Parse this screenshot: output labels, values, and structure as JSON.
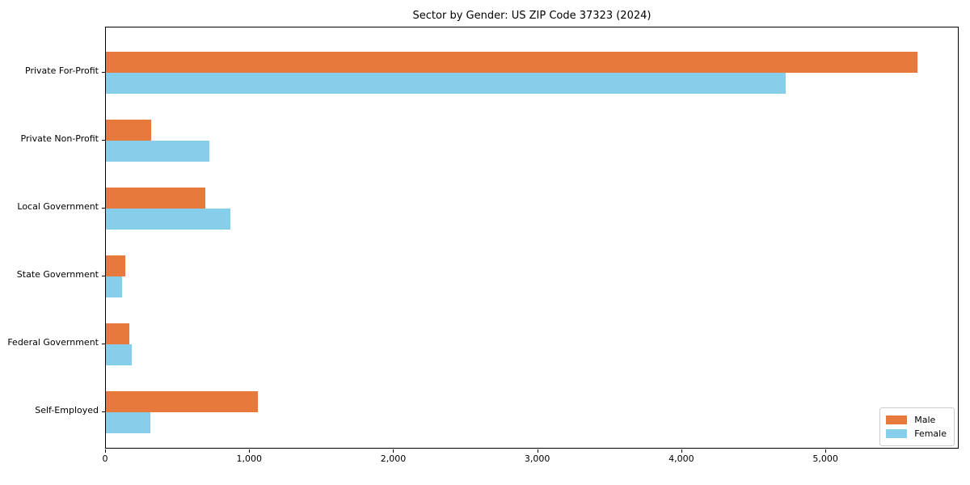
{
  "title": "Sector by Gender: US ZIP Code 37323 (2024)",
  "chart_data": {
    "type": "bar",
    "orientation": "horizontal",
    "title": "Sector by Gender: US ZIP Code 37323 (2024)",
    "xlabel": "",
    "ylabel": "",
    "categories": [
      "Private For-Profit",
      "Private Non-Profit",
      "Local Government",
      "State Government",
      "Federal Government",
      "Self-Employed"
    ],
    "series": [
      {
        "name": "Male",
        "color": "#E8793D",
        "values": [
          5645,
          315,
          690,
          135,
          165,
          1055
        ]
      },
      {
        "name": "Female",
        "color": "#87CEEB",
        "values": [
          4730,
          720,
          865,
          112,
          178,
          310
        ]
      }
    ],
    "xlim": [
      0,
      5925
    ],
    "xticks": [
      0,
      1000,
      2000,
      3000,
      4000,
      5000
    ],
    "xtick_labels": [
      "0",
      "1,000",
      "2,000",
      "3,000",
      "4,000",
      "5,000"
    ],
    "grid": false,
    "legend": {
      "position": "lower right",
      "entries": [
        "Male",
        "Female"
      ]
    }
  }
}
